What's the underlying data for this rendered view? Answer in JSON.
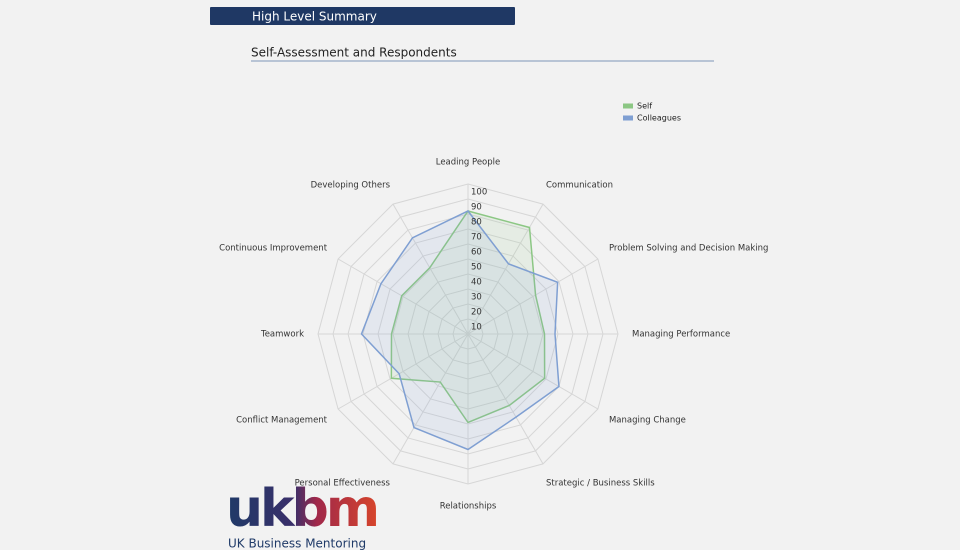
{
  "header": {
    "title": "High Level Summary",
    "section": "Self-Assessment and Respondents"
  },
  "logo": {
    "mark": "ukbm",
    "name": "UK Business Mentoring"
  },
  "chart_data": {
    "type": "radar",
    "categories": [
      "Leading People",
      "Communication",
      "Problem Solving and Decision Making",
      "Managing Performance",
      "Managing Change",
      "Strategic / Business Skills",
      "Relationships",
      "Personal Effectiveness",
      "Conflict Management",
      "Teamwork",
      "Continuous Improvement",
      "Developing Others"
    ],
    "series": [
      {
        "name": "Self",
        "color": "#8cc784",
        "values": [
          82,
          82,
          52,
          51,
          59,
          55,
          59,
          37,
          59,
          51,
          51,
          51
        ]
      },
      {
        "name": "Colleagues",
        "color": "#7f9fd2",
        "values": [
          82,
          54,
          69,
          58,
          70,
          64,
          77,
          72,
          53,
          71,
          67,
          74
        ]
      }
    ],
    "ylim": [
      0,
      100
    ],
    "yticks": [
      10,
      20,
      30,
      40,
      50,
      60,
      70,
      80,
      90,
      100
    ],
    "grid": true,
    "legend": "top-right"
  }
}
